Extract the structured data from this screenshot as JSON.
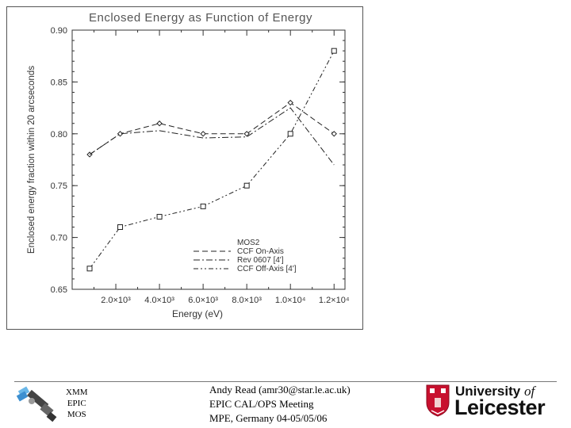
{
  "chart_data": {
    "type": "line",
    "title": "Enclosed Energy as Function of Energy",
    "xlabel": "Energy (eV)",
    "ylabel": "Enclosed energy fraction within 20 arcseconds",
    "xlim": [
      0,
      12500
    ],
    "ylim": [
      0.65,
      0.9
    ],
    "xticks": [
      2000,
      4000,
      6000,
      8000,
      10000,
      12000
    ],
    "xtick_labels": [
      "2.0×10³",
      "4.0×10³",
      "6.0×10³",
      "8.0×10³",
      "1.0×10⁴",
      "1.2×10⁴"
    ],
    "yticks": [
      0.65,
      0.7,
      0.75,
      0.8,
      0.85,
      0.9
    ],
    "ytick_labels": [
      "0.65",
      "0.70",
      "0.75",
      "0.80",
      "0.85",
      "0.90"
    ],
    "legend_title": "MOS2",
    "legend_position": "bottom-right",
    "series": [
      {
        "name": "CCF On-Axis",
        "style": "dashed",
        "marker": "diamond",
        "x": [
          800,
          2200,
          4000,
          6000,
          8000,
          10000,
          12000
        ],
        "values": [
          0.78,
          0.8,
          0.81,
          0.8,
          0.8,
          0.83,
          0.8
        ]
      },
      {
        "name": "Rev 0607 [4']",
        "style": "dash-dot",
        "marker": "none",
        "x": [
          800,
          2200,
          4000,
          6000,
          8000,
          10000,
          12000
        ],
        "values": [
          0.78,
          0.8,
          0.803,
          0.796,
          0.797,
          0.825,
          0.77
        ]
      },
      {
        "name": "CCF Off-Axis [4']",
        "style": "dash-dot-dot",
        "marker": "square",
        "x": [
          800,
          2200,
          4000,
          6000,
          8000,
          10000,
          12000
        ],
        "values": [
          0.67,
          0.71,
          0.72,
          0.73,
          0.75,
          0.8,
          0.88
        ]
      }
    ]
  },
  "footer": {
    "mission_lines": [
      "XMM",
      "EPIC",
      "MOS"
    ],
    "author": "Andy Read (amr30@star.le.ac.uk)",
    "meeting": "EPIC CAL/OPS Meeting",
    "venue": "MPE, Germany 04-05/05/06",
    "university_line1_a": "University",
    "university_line1_b": "of",
    "university_line2": "Leicester"
  },
  "colors": {
    "axis": "#333333",
    "line": "#222222",
    "title": "#555555",
    "crest_red": "#c8102e"
  }
}
